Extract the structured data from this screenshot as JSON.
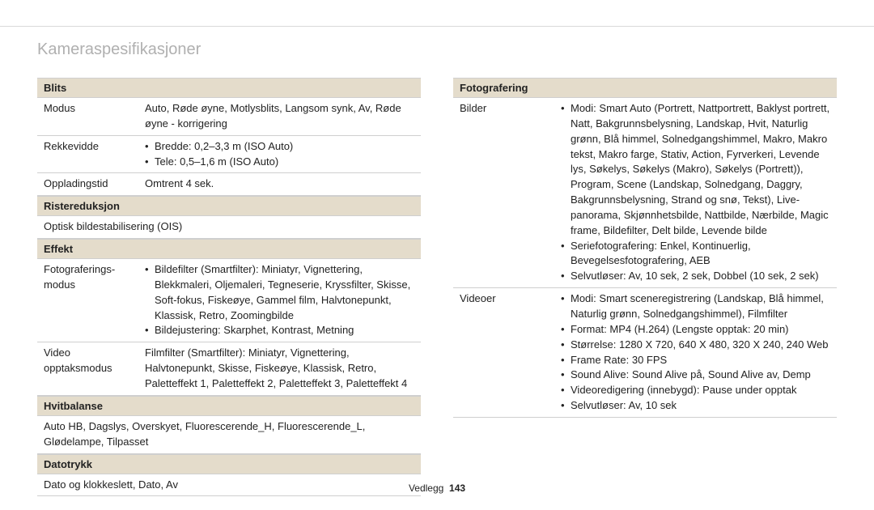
{
  "page_title": "Kameraspesifikasjoner",
  "footer_label": "Vedlegg",
  "footer_page": "143",
  "colors": {
    "section_bg": "#e4dccb",
    "rule": "#cfcfcf",
    "title": "#b0b0b0"
  },
  "left": {
    "blits": {
      "header": "Blits",
      "rows": {
        "modus": {
          "label": "Modus",
          "text": "Auto, Røde øyne, Motlysblits, Langsom synk, Av, Røde øyne - korrigering"
        },
        "rekkevidde": {
          "label": "Rekkevidde",
          "b1": "Bredde: 0,2–3,3 m (ISO Auto)",
          "b2": "Tele: 0,5–1,6 m (ISO Auto)"
        },
        "opplading": {
          "label": "Oppladingstid",
          "text": "Omtrent 4 sek."
        }
      }
    },
    "riste": {
      "header": "Ristereduksjon",
      "text": "Optisk bildestabilisering (OIS)"
    },
    "effekt": {
      "header": "Effekt",
      "rows": {
        "foto": {
          "label": "Fotograferings-modus",
          "b1": "Bildefilter (Smartfilter): Miniatyr, Vignettering, Blekkmaleri, Oljemaleri, Tegneserie, Kryssfilter, Skisse, Soft-fokus, Fiskeøye, Gammel film, Halvtonepunkt, Klassisk, Retro, Zoomingbilde",
          "b2": "Bildejustering: Skarphet, Kontrast, Metning"
        },
        "video": {
          "label": "Video opptaksmodus",
          "text": "Filmfilter (Smartfilter): Miniatyr, Vignettering, Halvtonepunkt, Skisse, Fiskeøye, Klassisk, Retro, Paletteffekt 1, Paletteffekt 2, Paletteffekt 3, Paletteffekt 4"
        }
      }
    },
    "hvit": {
      "header": "Hvitbalanse",
      "text": "Auto HB, Dagslys, Overskyet, Fluorescerende_H, Fluorescerende_L, Glødelampe, Tilpasset"
    },
    "dato": {
      "header": "Datotrykk",
      "text": "Dato og klokkeslett, Dato, Av"
    }
  },
  "right": {
    "foto": {
      "header": "Fotografering",
      "rows": {
        "bilder": {
          "label": "Bilder",
          "b1": "Modi: Smart Auto (Portrett, Nattportrett, Baklyst portrett, Natt, Bakgrunnsbelysning, Landskap, Hvit, Naturlig grønn, Blå himmel, Solnedgangshimmel, Makro, Makro tekst, Makro farge, Stativ, Action, Fyrverkeri, Levende lys, Søkelys, Søkelys (Makro), Søkelys (Portrett)), Program, Scene (Landskap, Solnedgang, Daggry, Bakgrunnsbelysning, Strand og snø, Tekst), Live-panorama, Skjønnhetsbilde, Nattbilde, Nærbilde, Magic frame, Bildefilter, Delt bilde, Levende bilde",
          "b2": "Seriefotografering: Enkel, Kontinuerlig, Bevegelsesfotografering, AEB",
          "b3": "Selvutløser: Av, 10 sek, 2 sek, Dobbel (10 sek, 2 sek)"
        },
        "videoer": {
          "label": "Videoer",
          "b1": "Modi: Smart sceneregistrering (Landskap, Blå himmel, Naturlig grønn, Solnedgangshimmel), Filmfilter",
          "b2": "Format: MP4 (H.264) (Lengste opptak: 20 min)",
          "b3": "Størrelse: 1280 X 720, 640 X 480, 320 X 240, 240 Web",
          "b4": "Frame Rate: 30 FPS",
          "b5": "Sound Alive: Sound Alive på, Sound Alive av, Demp",
          "b6": "Videoredigering (innebygd): Pause under opptak",
          "b7": "Selvutløser: Av, 10 sek"
        }
      }
    }
  }
}
